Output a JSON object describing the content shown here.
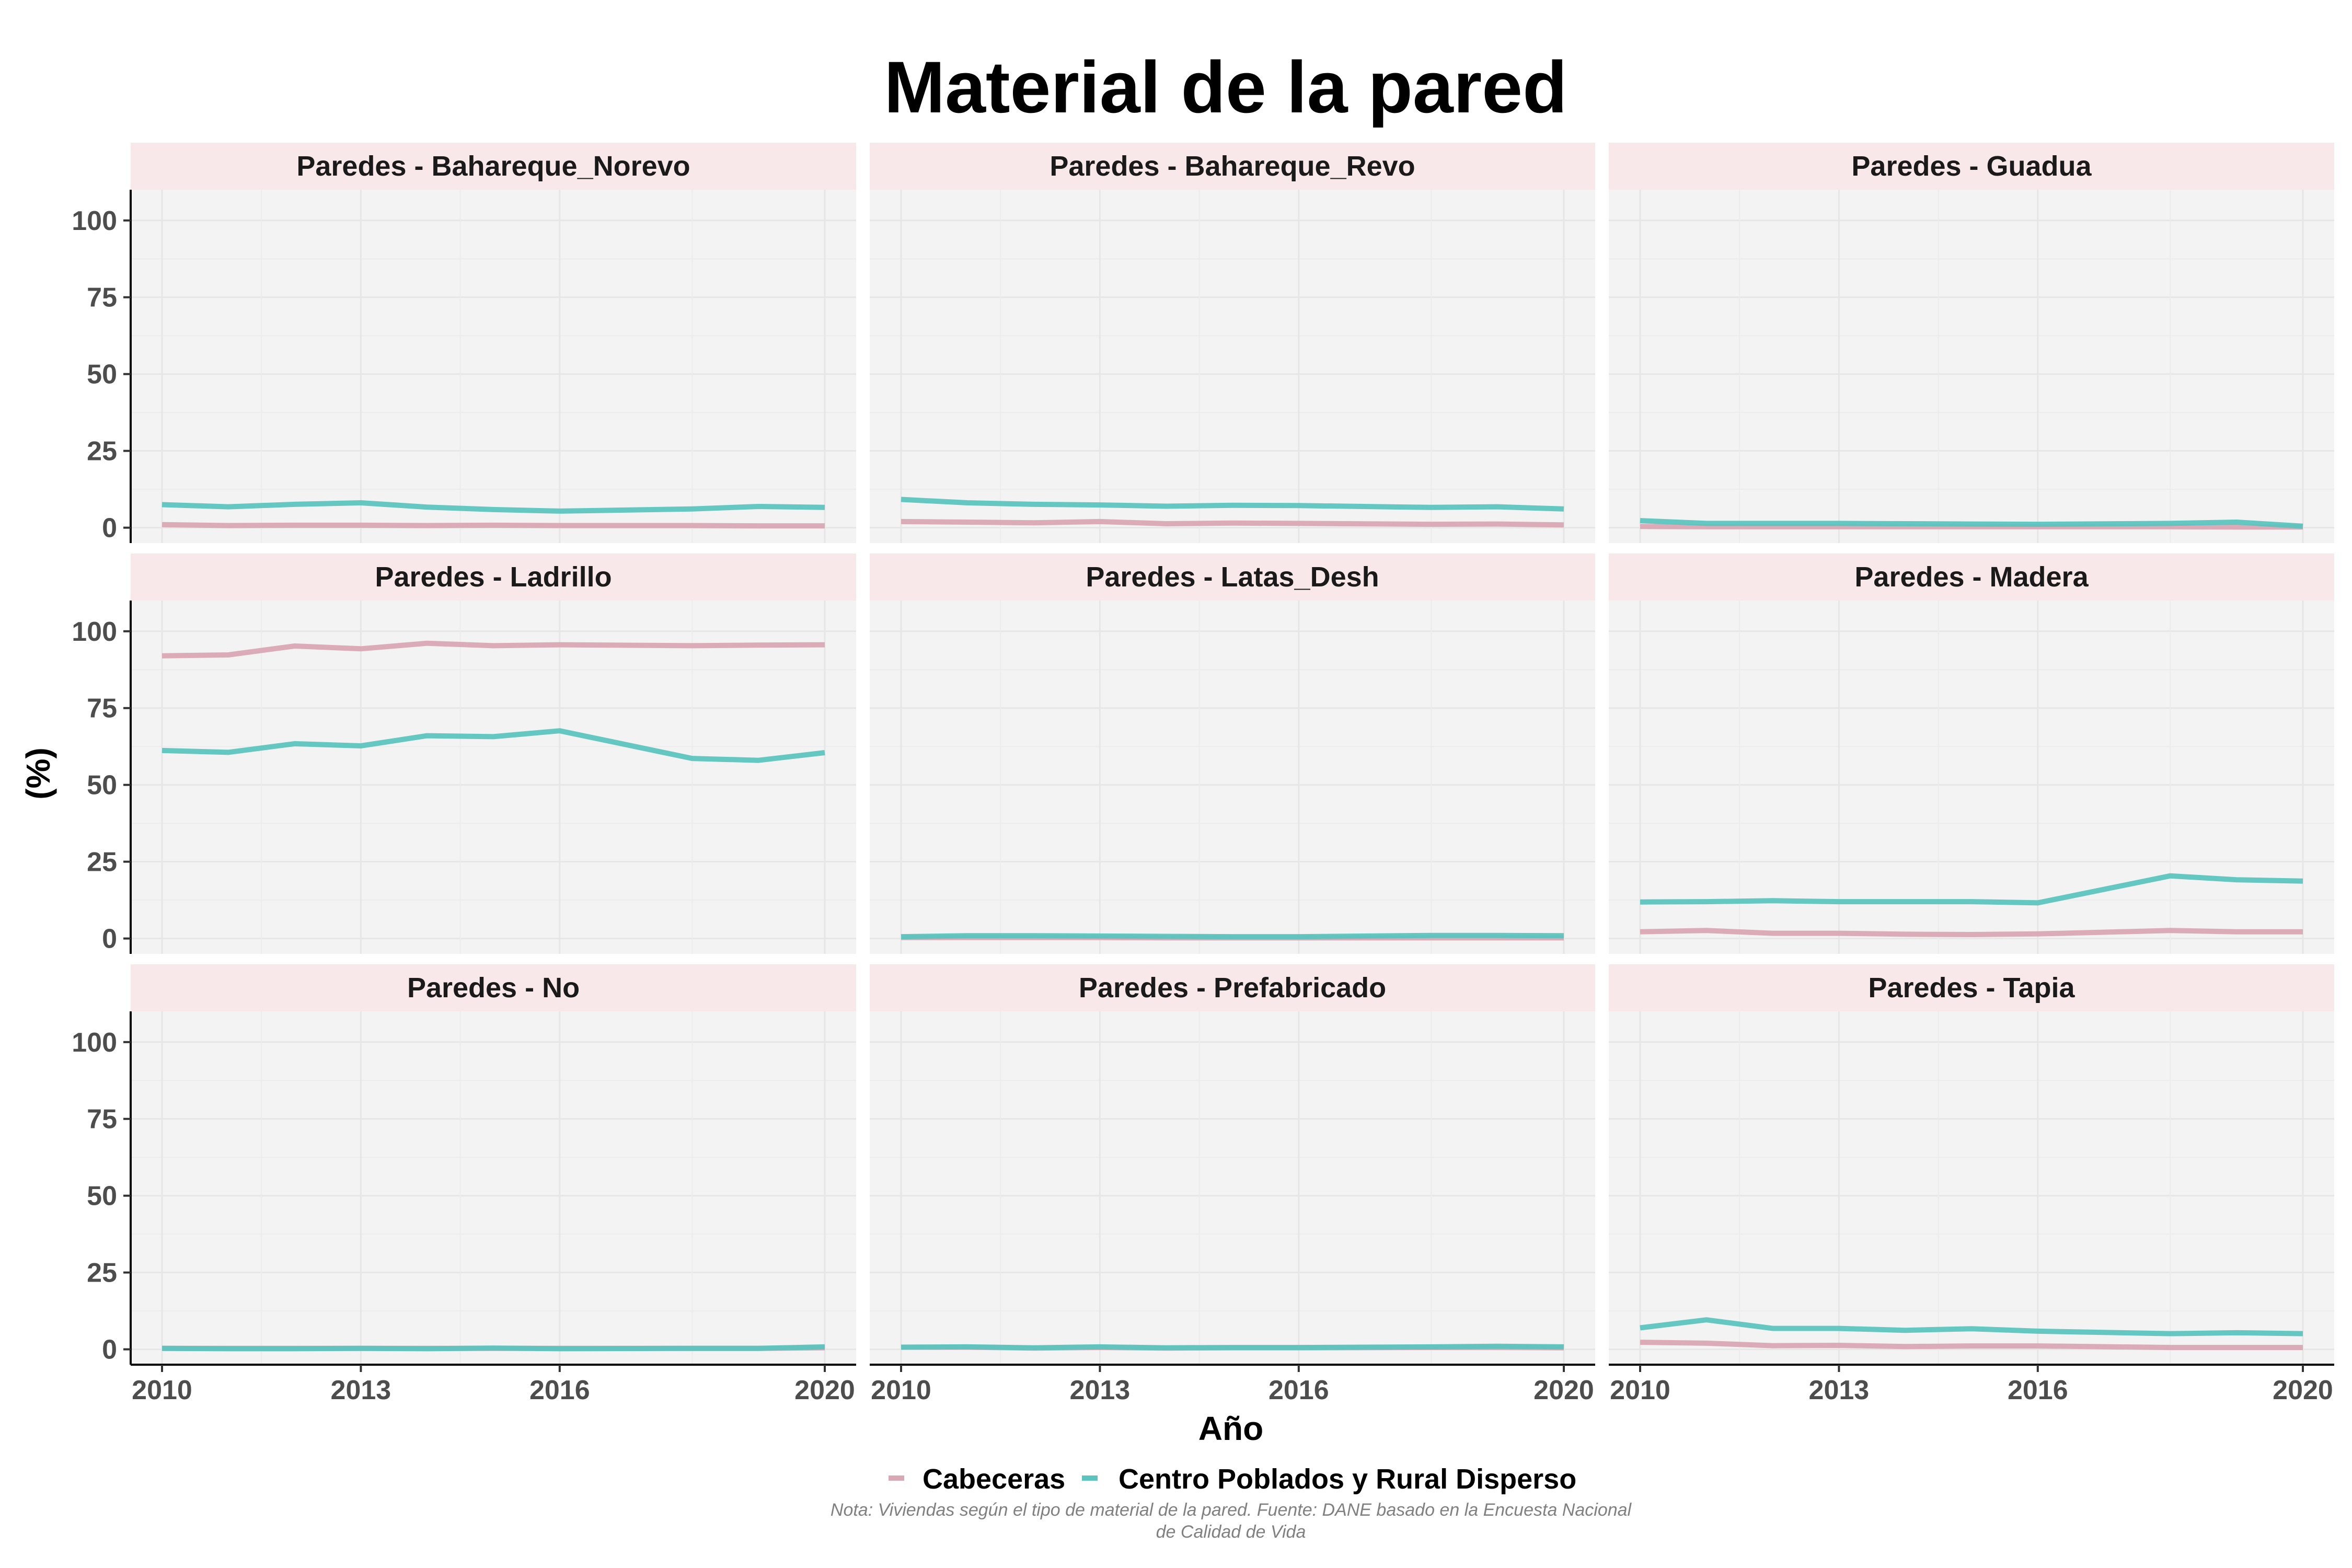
{
  "chart_data": {
    "type": "line",
    "title": "Material de la pared",
    "xlabel": "Año",
    "ylabel": "(%)",
    "ylim": [
      0,
      100
    ],
    "yticks": [
      0,
      25,
      50,
      75,
      100
    ],
    "xlim": [
      2010,
      2020
    ],
    "xticks": [
      2010,
      2013,
      2016,
      2020
    ],
    "x": [
      2010,
      2011,
      2012,
      2013,
      2014,
      2015,
      2016,
      2018,
      2019,
      2020
    ],
    "grid": true,
    "legend_position": "bottom",
    "colors": {
      "Cabeceras": "#d9a8b4",
      "Centro Poblados y Rural Disperso": "#5cc4be",
      "panel_bg": "#f3f3f3",
      "strip_bg": "#f9e8ea"
    },
    "legend": [
      "Cabeceras",
      "Centro Poblados y Rural Disperso"
    ],
    "note_lines": [
      "Nota: Viviendas según el tipo de material de la pared. Fuente: DANE basado en la Encuesta Nacional",
      "de Calidad de Vida"
    ],
    "panels": [
      {
        "label": "Paredes -  Bahareque_Norevo",
        "series": [
          {
            "name": "Cabeceras",
            "values": [
              1.0,
              0.7,
              0.8,
              0.8,
              0.7,
              0.8,
              0.7,
              0.7,
              0.6,
              0.6
            ]
          },
          {
            "name": "Centro Poblados y Rural Disperso",
            "values": [
              7.5,
              6.8,
              7.6,
              8.1,
              6.7,
              5.9,
              5.4,
              6.1,
              6.9,
              6.6
            ]
          }
        ]
      },
      {
        "label": "Paredes -  Bahareque_Revo",
        "series": [
          {
            "name": "Cabeceras",
            "values": [
              2.0,
              1.8,
              1.6,
              2.0,
              1.3,
              1.5,
              1.4,
              1.1,
              1.2,
              0.9
            ]
          },
          {
            "name": "Centro Poblados y Rural Disperso",
            "values": [
              9.2,
              8.1,
              7.6,
              7.4,
              7.0,
              7.3,
              7.2,
              6.6,
              6.8,
              6.1
            ]
          }
        ]
      },
      {
        "label": "Paredes -  Guadua",
        "series": [
          {
            "name": "Cabeceras",
            "values": [
              0.4,
              0.3,
              0.3,
              0.3,
              0.3,
              0.3,
              0.3,
              0.3,
              0.2,
              0.2
            ]
          },
          {
            "name": "Centro Poblados y Rural Disperso",
            "values": [
              2.3,
              1.4,
              1.4,
              1.4,
              1.3,
              1.2,
              1.1,
              1.4,
              1.8,
              0.5
            ]
          }
        ]
      },
      {
        "label": "Paredes -  Ladrillo",
        "series": [
          {
            "name": "Cabeceras",
            "values": [
              92.0,
              92.3,
              95.2,
              94.3,
              96.1,
              95.3,
              95.6,
              95.3,
              95.5,
              95.6
            ]
          },
          {
            "name": "Centro Poblados y Rural Disperso",
            "values": [
              61.2,
              60.6,
              63.4,
              62.7,
              66.0,
              65.7,
              67.6,
              58.6,
              58.0,
              60.5
            ]
          }
        ]
      },
      {
        "label": "Paredes -  Latas_Desh",
        "series": [
          {
            "name": "Cabeceras",
            "values": [
              0.3,
              0.3,
              0.3,
              0.3,
              0.2,
              0.2,
              0.2,
              0.2,
              0.2,
              0.2
            ]
          },
          {
            "name": "Centro Poblados y Rural Disperso",
            "values": [
              0.6,
              0.9,
              0.9,
              0.8,
              0.7,
              0.6,
              0.6,
              1.0,
              1.0,
              0.9
            ]
          }
        ]
      },
      {
        "label": "Paredes -  Madera",
        "series": [
          {
            "name": "Cabeceras",
            "values": [
              2.2,
              2.6,
              1.7,
              1.7,
              1.4,
              1.3,
              1.5,
              2.6,
              2.2,
              2.2
            ]
          },
          {
            "name": "Centro Poblados y Rural Disperso",
            "values": [
              11.9,
              12.0,
              12.3,
              12.0,
              12.0,
              12.0,
              11.6,
              20.4,
              19.1,
              18.7
            ]
          }
        ]
      },
      {
        "label": "Paredes -  No",
        "series": [
          {
            "name": "Cabeceras",
            "values": [
              0.3,
              0.3,
              0.3,
              0.3,
              0.3,
              0.3,
              0.3,
              0.3,
              0.3,
              0.5
            ]
          },
          {
            "name": "Centro Poblados y Rural Disperso",
            "values": [
              0.3,
              0.2,
              0.2,
              0.3,
              0.2,
              0.4,
              0.2,
              0.3,
              0.3,
              0.8
            ]
          }
        ]
      },
      {
        "label": "Paredes -  Prefabricado",
        "series": [
          {
            "name": "Cabeceras",
            "values": [
              0.7,
              0.7,
              0.4,
              0.6,
              0.4,
              0.5,
              0.5,
              0.6,
              0.6,
              0.5
            ]
          },
          {
            "name": "Centro Poblados y Rural Disperso",
            "values": [
              0.7,
              0.8,
              0.5,
              0.8,
              0.5,
              0.6,
              0.6,
              0.8,
              1.0,
              0.8
            ]
          }
        ]
      },
      {
        "label": "Paredes -  Tapia",
        "series": [
          {
            "name": "Cabeceras",
            "values": [
              2.3,
              2.0,
              1.2,
              1.3,
              0.9,
              1.1,
              1.1,
              0.6,
              0.6,
              0.6
            ]
          },
          {
            "name": "Centro Poblados y Rural Disperso",
            "values": [
              7.0,
              9.6,
              6.8,
              6.8,
              6.2,
              6.7,
              5.9,
              5.1,
              5.4,
              5.1
            ]
          }
        ]
      }
    ]
  }
}
